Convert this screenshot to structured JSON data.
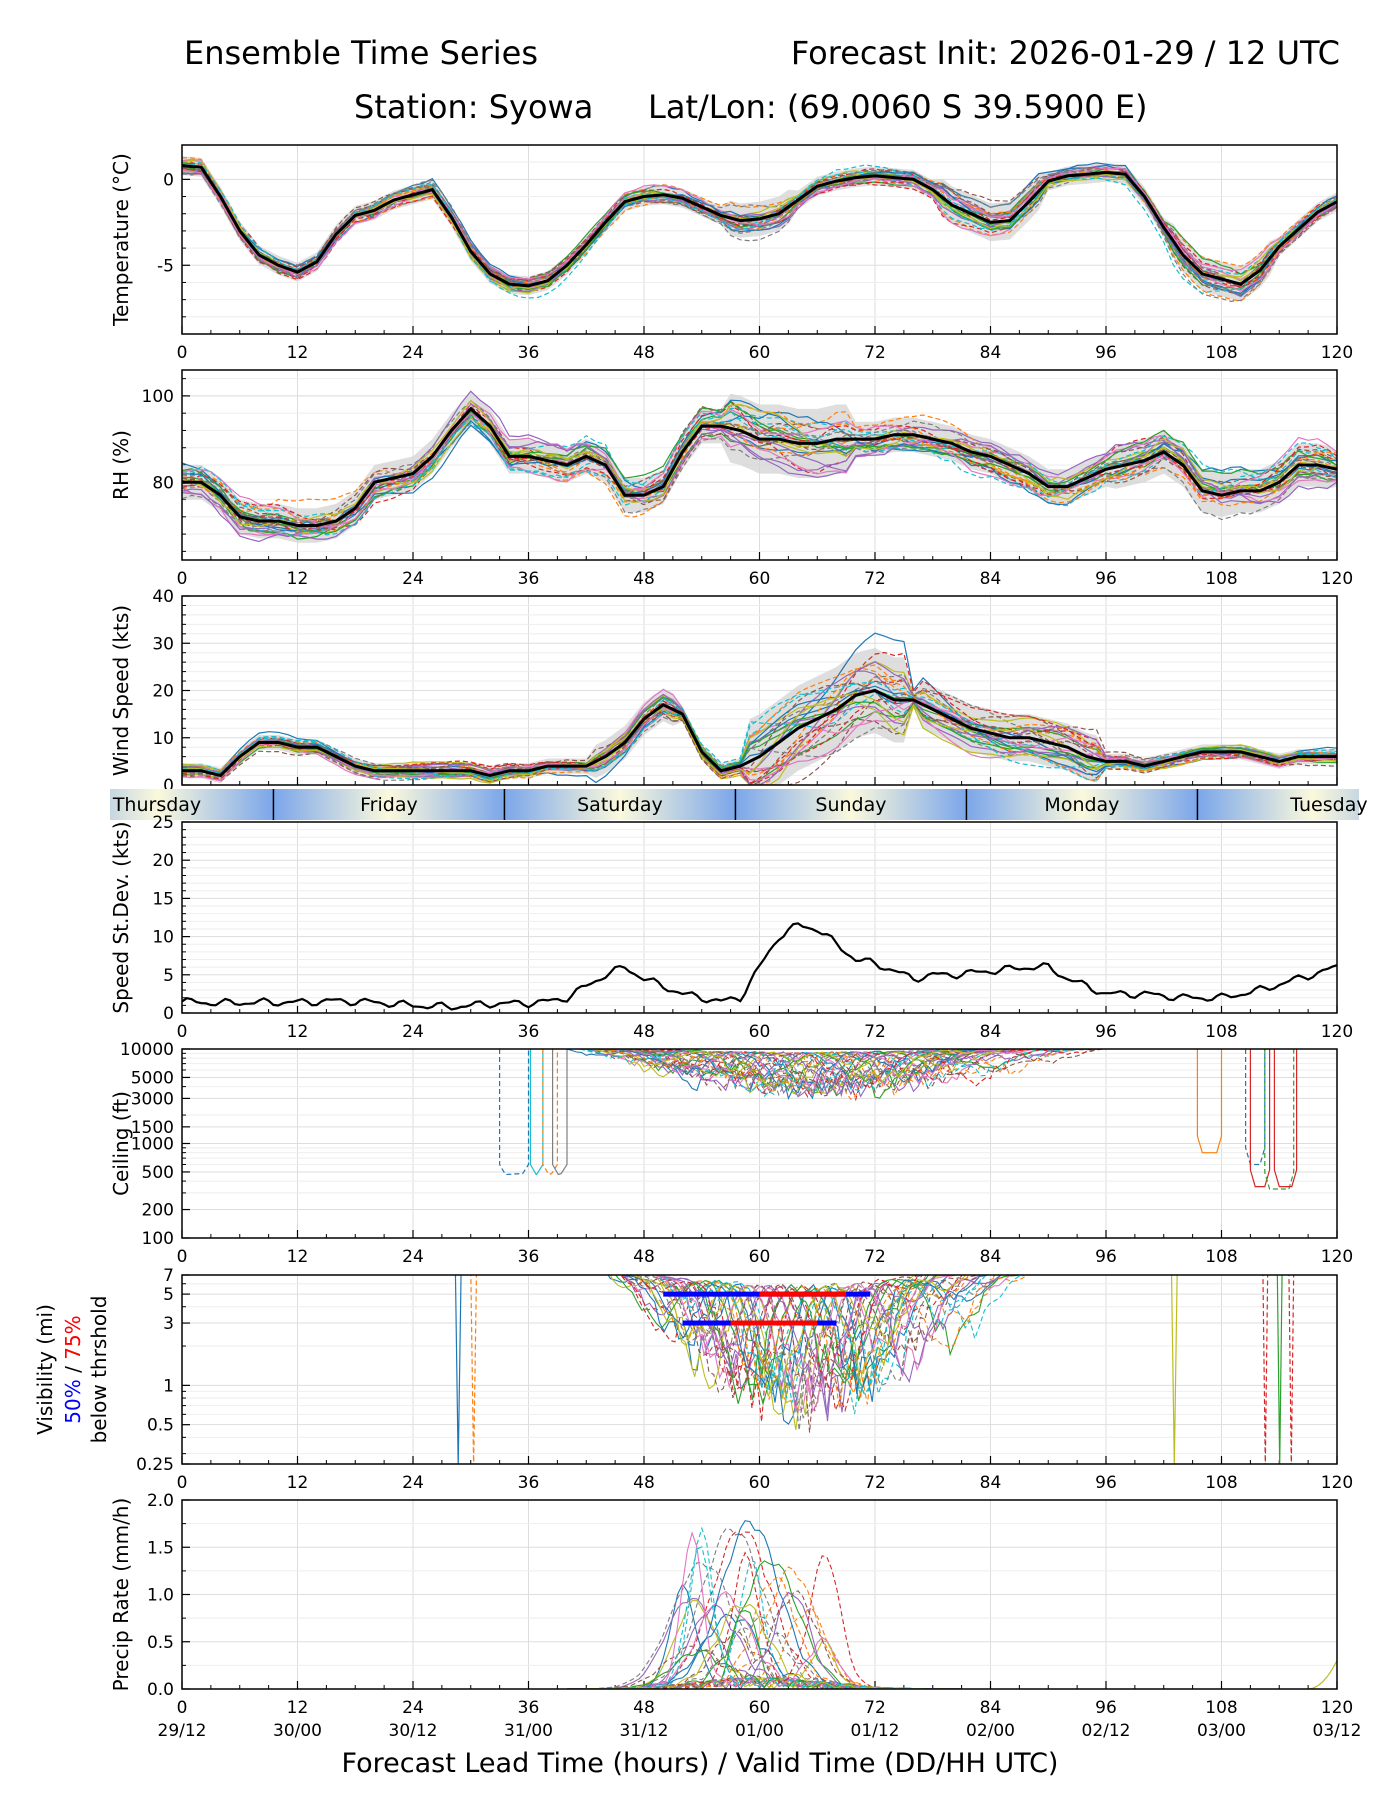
{
  "header": {
    "title": "Ensemble Time Series",
    "init": "Forecast Init: 2026-01-29 / 12 UTC",
    "station": "Station: Syowa",
    "latlon": "Lat/Lon: (69.0060 S 39.5900 E)"
  },
  "xaxis": {
    "label": "Forecast Lead Time (hours) / Valid Time (DD/HH UTC)",
    "ticks": [
      0,
      12,
      24,
      36,
      48,
      60,
      72,
      84,
      96,
      108,
      120
    ],
    "valid_labels": [
      "29/12",
      "30/00",
      "30/12",
      "31/00",
      "31/12",
      "01/00",
      "01/12",
      "02/00",
      "02/12",
      "03/00",
      "03/12"
    ]
  },
  "day_band": {
    "days": [
      "Thursday",
      "Friday",
      "Saturday",
      "Sunday",
      "Monday",
      "Tuesday"
    ],
    "boundaries_h": [
      9.5,
      33.5,
      57.5,
      81.5,
      105.5
    ]
  },
  "colors": {
    "mean": "#000000",
    "spread": "#d3d3d3",
    "vis50": "#0000ff",
    "vis75": "#ff0000",
    "members": [
      "#1f77b4",
      "#ff7f0e",
      "#2ca02c",
      "#d62728",
      "#9467bd",
      "#8c564b",
      "#e377c2",
      "#7f7f7f",
      "#bcbd22",
      "#17becf"
    ]
  },
  "chart_data": [
    {
      "id": "temperature",
      "type": "line",
      "ylabel": "Temperature (°C)",
      "ylim": [
        -9,
        2
      ],
      "yticks": [
        0,
        -5
      ],
      "mean": {
        "x": [
          0,
          2,
          4,
          6,
          8,
          10,
          12,
          14,
          16,
          18,
          20,
          22,
          24,
          26,
          28,
          30,
          32,
          34,
          36,
          38,
          40,
          42,
          44,
          46,
          48,
          50,
          52,
          54,
          56,
          58,
          60,
          62,
          64,
          66,
          68,
          70,
          72,
          74,
          76,
          78,
          80,
          82,
          84,
          86,
          88,
          90,
          92,
          94,
          96,
          98,
          100,
          102,
          104,
          106,
          108,
          110,
          112,
          114,
          116,
          118,
          120
        ],
        "y": [
          0.8,
          0.7,
          -1.0,
          -3.0,
          -4.4,
          -5.0,
          -5.4,
          -4.8,
          -3.2,
          -2.1,
          -1.8,
          -1.2,
          -0.9,
          -0.6,
          -2.2,
          -4.2,
          -5.5,
          -6.1,
          -6.2,
          -5.9,
          -5.0,
          -3.8,
          -2.5,
          -1.3,
          -1.0,
          -0.9,
          -1.1,
          -1.6,
          -2.1,
          -2.4,
          -2.3,
          -2.0,
          -1.2,
          -0.4,
          -0.1,
          0.1,
          0.2,
          0.1,
          0.0,
          -0.6,
          -1.5,
          -2.0,
          -2.5,
          -2.4,
          -1.3,
          -0.1,
          0.2,
          0.3,
          0.4,
          0.3,
          -1.0,
          -2.8,
          -4.4,
          -5.5,
          -5.8,
          -6.1,
          -5.3,
          -3.9,
          -2.9,
          -1.9,
          -1.3
        ]
      }
    },
    {
      "id": "rh",
      "type": "line",
      "ylabel": "RH (%)",
      "ylim": [
        62,
        106
      ],
      "yticks": [
        100,
        80
      ],
      "mean": {
        "x": [
          0,
          2,
          4,
          6,
          8,
          10,
          12,
          14,
          16,
          18,
          20,
          22,
          24,
          26,
          28,
          30,
          32,
          34,
          36,
          38,
          40,
          42,
          44,
          46,
          48,
          50,
          52,
          54,
          56,
          58,
          60,
          62,
          64,
          66,
          68,
          70,
          72,
          74,
          76,
          78,
          80,
          82,
          84,
          86,
          88,
          90,
          92,
          94,
          96,
          98,
          100,
          102,
          104,
          106,
          108,
          110,
          112,
          114,
          116,
          118,
          120
        ],
        "y": [
          80,
          80,
          77,
          72,
          71,
          71,
          70,
          70,
          71,
          74,
          80,
          81,
          82,
          86,
          92,
          97,
          93,
          86,
          86,
          85,
          84,
          86,
          84,
          77,
          77,
          79,
          87,
          93,
          93,
          92,
          90,
          90,
          89,
          89,
          90,
          90,
          90,
          91,
          91,
          90,
          89,
          87,
          86,
          84,
          82,
          79,
          79,
          81,
          83,
          84,
          85,
          87,
          84,
          78,
          77,
          78,
          78,
          80,
          84,
          84,
          83
        ]
      }
    },
    {
      "id": "wind",
      "type": "line",
      "ylabel": "Wind Speed (kts)",
      "ylim": [
        0,
        40
      ],
      "yticks": [
        0,
        10,
        20,
        30,
        40
      ],
      "mean": {
        "x": [
          0,
          2,
          4,
          6,
          8,
          10,
          12,
          14,
          16,
          18,
          20,
          22,
          24,
          26,
          28,
          30,
          32,
          34,
          36,
          38,
          40,
          42,
          44,
          46,
          48,
          50,
          52,
          54,
          56,
          58,
          60,
          62,
          64,
          66,
          68,
          70,
          72,
          74,
          76,
          78,
          80,
          82,
          84,
          86,
          88,
          90,
          92,
          94,
          96,
          98,
          100,
          102,
          104,
          106,
          108,
          110,
          112,
          114,
          116,
          118,
          120
        ],
        "y": [
          3,
          3,
          2,
          6,
          9,
          9,
          8,
          8,
          6,
          4,
          3,
          3,
          3,
          3,
          3,
          3,
          2,
          3,
          3,
          4,
          4,
          4,
          6,
          9,
          14,
          17,
          15,
          7,
          3,
          4,
          6,
          9,
          12,
          14,
          16,
          19,
          20,
          18,
          18,
          16,
          14,
          12,
          11,
          10,
          10,
          9,
          8,
          6,
          5,
          5,
          4,
          5,
          6,
          7,
          7,
          7,
          6,
          5,
          6,
          6,
          6
        ]
      }
    },
    {
      "id": "spread",
      "type": "line",
      "ylabel": "Speed St.Dev. (kts)",
      "ylim": [
        0,
        25
      ],
      "yticks": [
        0,
        5,
        10,
        15,
        20,
        25
      ],
      "mean": {
        "x": [
          0,
          4,
          8,
          12,
          16,
          20,
          24,
          28,
          32,
          36,
          38,
          40,
          42,
          44,
          46,
          48,
          50,
          52,
          54,
          56,
          58,
          60,
          62,
          64,
          66,
          68,
          70,
          72,
          74,
          76,
          78,
          80,
          84,
          88,
          90,
          92,
          94,
          96,
          100,
          104,
          108,
          112,
          116,
          120
        ],
        "y": [
          1.5,
          1.3,
          1.4,
          1.4,
          1.6,
          1.4,
          1.0,
          0.8,
          1.2,
          1.3,
          1.5,
          2.0,
          3.5,
          5.0,
          6.0,
          4.5,
          3.5,
          2.5,
          2.0,
          1.5,
          2.0,
          6.0,
          10.0,
          11.5,
          11.0,
          9.0,
          7.0,
          6.5,
          5.5,
          4.5,
          5.0,
          5.0,
          5.5,
          6.0,
          6.0,
          4.5,
          3.5,
          2.5,
          2.5,
          2.0,
          2.0,
          3.0,
          4.5,
          6.0
        ]
      }
    },
    {
      "id": "ceiling",
      "type": "line",
      "ylabel": "Ceiling (ft)",
      "yscale": "log",
      "ylim": [
        100,
        10000
      ],
      "yticks": [
        100,
        200,
        500,
        1000,
        1500,
        3000,
        5000,
        10000
      ]
    },
    {
      "id": "visibility",
      "type": "line",
      "ylabel": "Visibility (mi)",
      "yscale": "log",
      "ylabel_extra": {
        "p50": "50%",
        "sep": " / ",
        "p75": "75%",
        "tail": "below thrshold"
      },
      "ylim": [
        0.25,
        7
      ],
      "yticks": [
        0.25,
        0.5,
        1,
        3,
        5,
        7
      ],
      "threshold_bars": [
        {
          "threshold": 5,
          "x50": [
            50,
            71.5
          ],
          "x75": [
            60,
            69
          ]
        },
        {
          "threshold": 3,
          "x50": [
            52,
            68
          ],
          "x75": [
            57,
            66
          ]
        }
      ]
    },
    {
      "id": "precip",
      "type": "line",
      "ylabel": "Precip Rate (mm/h)",
      "ylim": [
        0,
        2
      ],
      "yticks": [
        0.0,
        0.5,
        1.0,
        1.5,
        2.0
      ],
      "ytick_labels": [
        "0.0",
        "0.5",
        "1.0",
        "1.5",
        "2.0"
      ]
    }
  ]
}
